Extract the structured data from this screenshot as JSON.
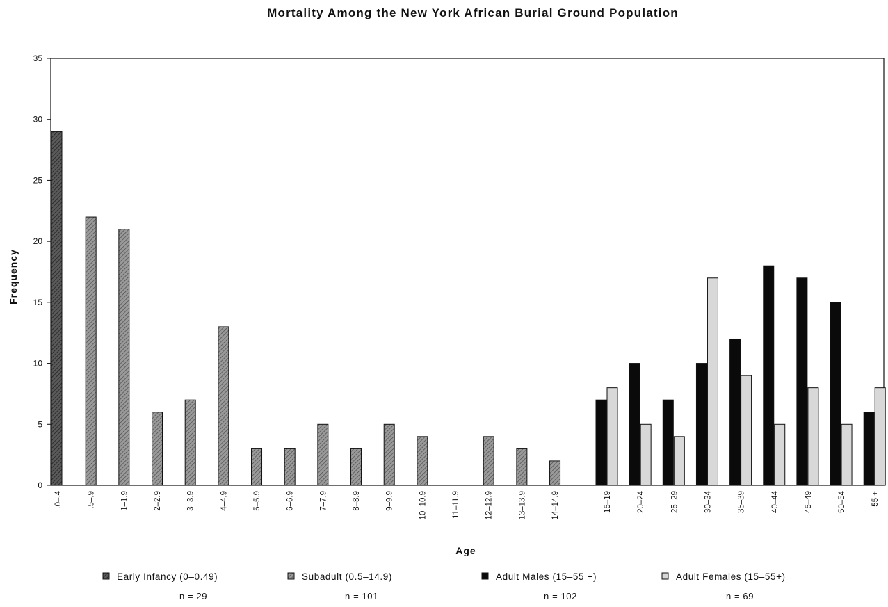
{
  "chart_data": {
    "type": "bar",
    "title": "Mortality Among the New York African Burial Ground Population",
    "xlabel": "Age",
    "ylabel": "Frequency",
    "ylim": [
      0,
      35
    ],
    "yticks": [
      "0",
      "5",
      "10",
      "15",
      "20",
      "25",
      "30",
      "35"
    ],
    "grid": false,
    "legend_position": "bottom",
    "categories": [
      ".0–.4",
      ".5–.9",
      "1–1.9",
      "2–2.9",
      "3–3.9",
      "4–4.9",
      "5–5.9",
      "6–6.9",
      "7–7.9",
      "8–8.9",
      "9–9.9",
      "10–10.9",
      "11–11.9",
      "12–12.9",
      "13–13.9",
      "14–14.9",
      "15–19",
      "20–24",
      "25–29",
      "30–34",
      "35–39",
      "40–44",
      "45–49",
      "50–54",
      "55 +"
    ],
    "series": [
      {
        "name": "Early Infancy (0–0.49)",
        "n_label": "n = 29",
        "color": "#444444",
        "values": [
          29,
          null,
          null,
          null,
          null,
          null,
          null,
          null,
          null,
          null,
          null,
          null,
          null,
          null,
          null,
          null,
          null,
          null,
          null,
          null,
          null,
          null,
          null,
          null,
          null
        ]
      },
      {
        "name": "Subadult (0.5–14.9)",
        "n_label": "n = 101",
        "color": "#8a8a8a",
        "values": [
          null,
          22,
          21,
          6,
          7,
          13,
          3,
          3,
          5,
          3,
          5,
          4,
          0,
          4,
          3,
          2,
          null,
          null,
          null,
          null,
          null,
          null,
          null,
          null,
          null
        ]
      },
      {
        "name": "Adult Males (15–55 +)",
        "n_label": "n = 102",
        "color": "#0a0a0a",
        "values": [
          null,
          null,
          null,
          null,
          null,
          null,
          null,
          null,
          null,
          null,
          null,
          null,
          null,
          null,
          null,
          null,
          7,
          10,
          7,
          10,
          12,
          18,
          17,
          15,
          6
        ]
      },
      {
        "name": "Adult Females (15–55+)",
        "n_label": "n = 69",
        "color": "#d8d8d8",
        "values": [
          null,
          null,
          null,
          null,
          null,
          null,
          null,
          null,
          null,
          null,
          null,
          null,
          null,
          null,
          null,
          null,
          8,
          5,
          4,
          17,
          9,
          5,
          8,
          5,
          8
        ]
      }
    ]
  }
}
